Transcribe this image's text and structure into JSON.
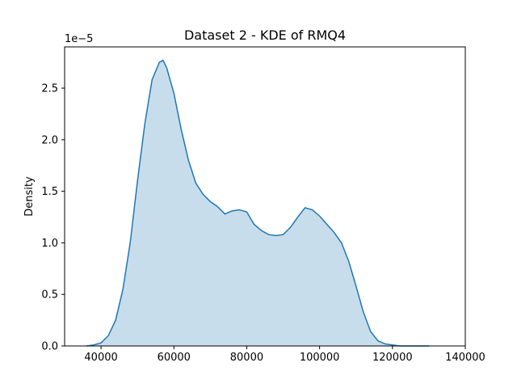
{
  "chart_data": {
    "type": "area",
    "title": "Dataset 2 - KDE of RMQ4",
    "xlabel": "",
    "ylabel": "Density",
    "y_offset_label": "1e−5",
    "xlim": [
      30000,
      140000
    ],
    "ylim": [
      0,
      2.9e-05
    ],
    "x_ticks": [
      40000,
      60000,
      80000,
      100000,
      120000,
      140000
    ],
    "x_tick_labels": [
      "40000",
      "60000",
      "80000",
      "100000",
      "120000",
      "140000"
    ],
    "y_ticks": [
      0,
      5e-06,
      1e-05,
      1.5e-05,
      2e-05,
      2.5e-05
    ],
    "y_tick_labels": [
      "0.0",
      "0.5",
      "1.0",
      "1.5",
      "2.0",
      "2.5"
    ],
    "grid": false,
    "series": [
      {
        "color": "#1f77b4",
        "fill_color": "#1f77b4",
        "fill_opacity": 0.25,
        "x": [
          36000,
          38000,
          40000,
          42000,
          44000,
          46000,
          48000,
          50000,
          52000,
          54000,
          56000,
          57000,
          58000,
          60000,
          62000,
          64000,
          66000,
          68000,
          70000,
          72000,
          74000,
          76000,
          78000,
          80000,
          82000,
          84000,
          86000,
          88000,
          90000,
          92000,
          94000,
          96000,
          98000,
          100000,
          102000,
          104000,
          106000,
          108000,
          110000,
          112000,
          114000,
          116000,
          118000,
          120000,
          122000,
          124000,
          126000,
          128000,
          130000
        ],
        "y": [
          0.0,
          1e-07,
          3e-07,
          1e-06,
          2.5e-06,
          5.5e-06,
          1e-05,
          1.6e-05,
          2.15e-05,
          2.58e-05,
          2.75e-05,
          2.77e-05,
          2.7e-05,
          2.45e-05,
          2.1e-05,
          1.8e-05,
          1.58e-05,
          1.47e-05,
          1.4e-05,
          1.35e-05,
          1.28e-05,
          1.31e-05,
          1.32e-05,
          1.3e-05,
          1.18e-05,
          1.12e-05,
          1.08e-05,
          1.07e-05,
          1.08e-05,
          1.15e-05,
          1.25e-05,
          1.34e-05,
          1.32e-05,
          1.26e-05,
          1.18e-05,
          1.1e-05,
          1e-05,
          8.2e-06,
          5.8e-06,
          3.3e-06,
          1.4e-06,
          5e-07,
          2e-07,
          1e-07,
          0.0,
          0.0,
          0.0,
          0.0,
          0.0
        ]
      }
    ]
  }
}
